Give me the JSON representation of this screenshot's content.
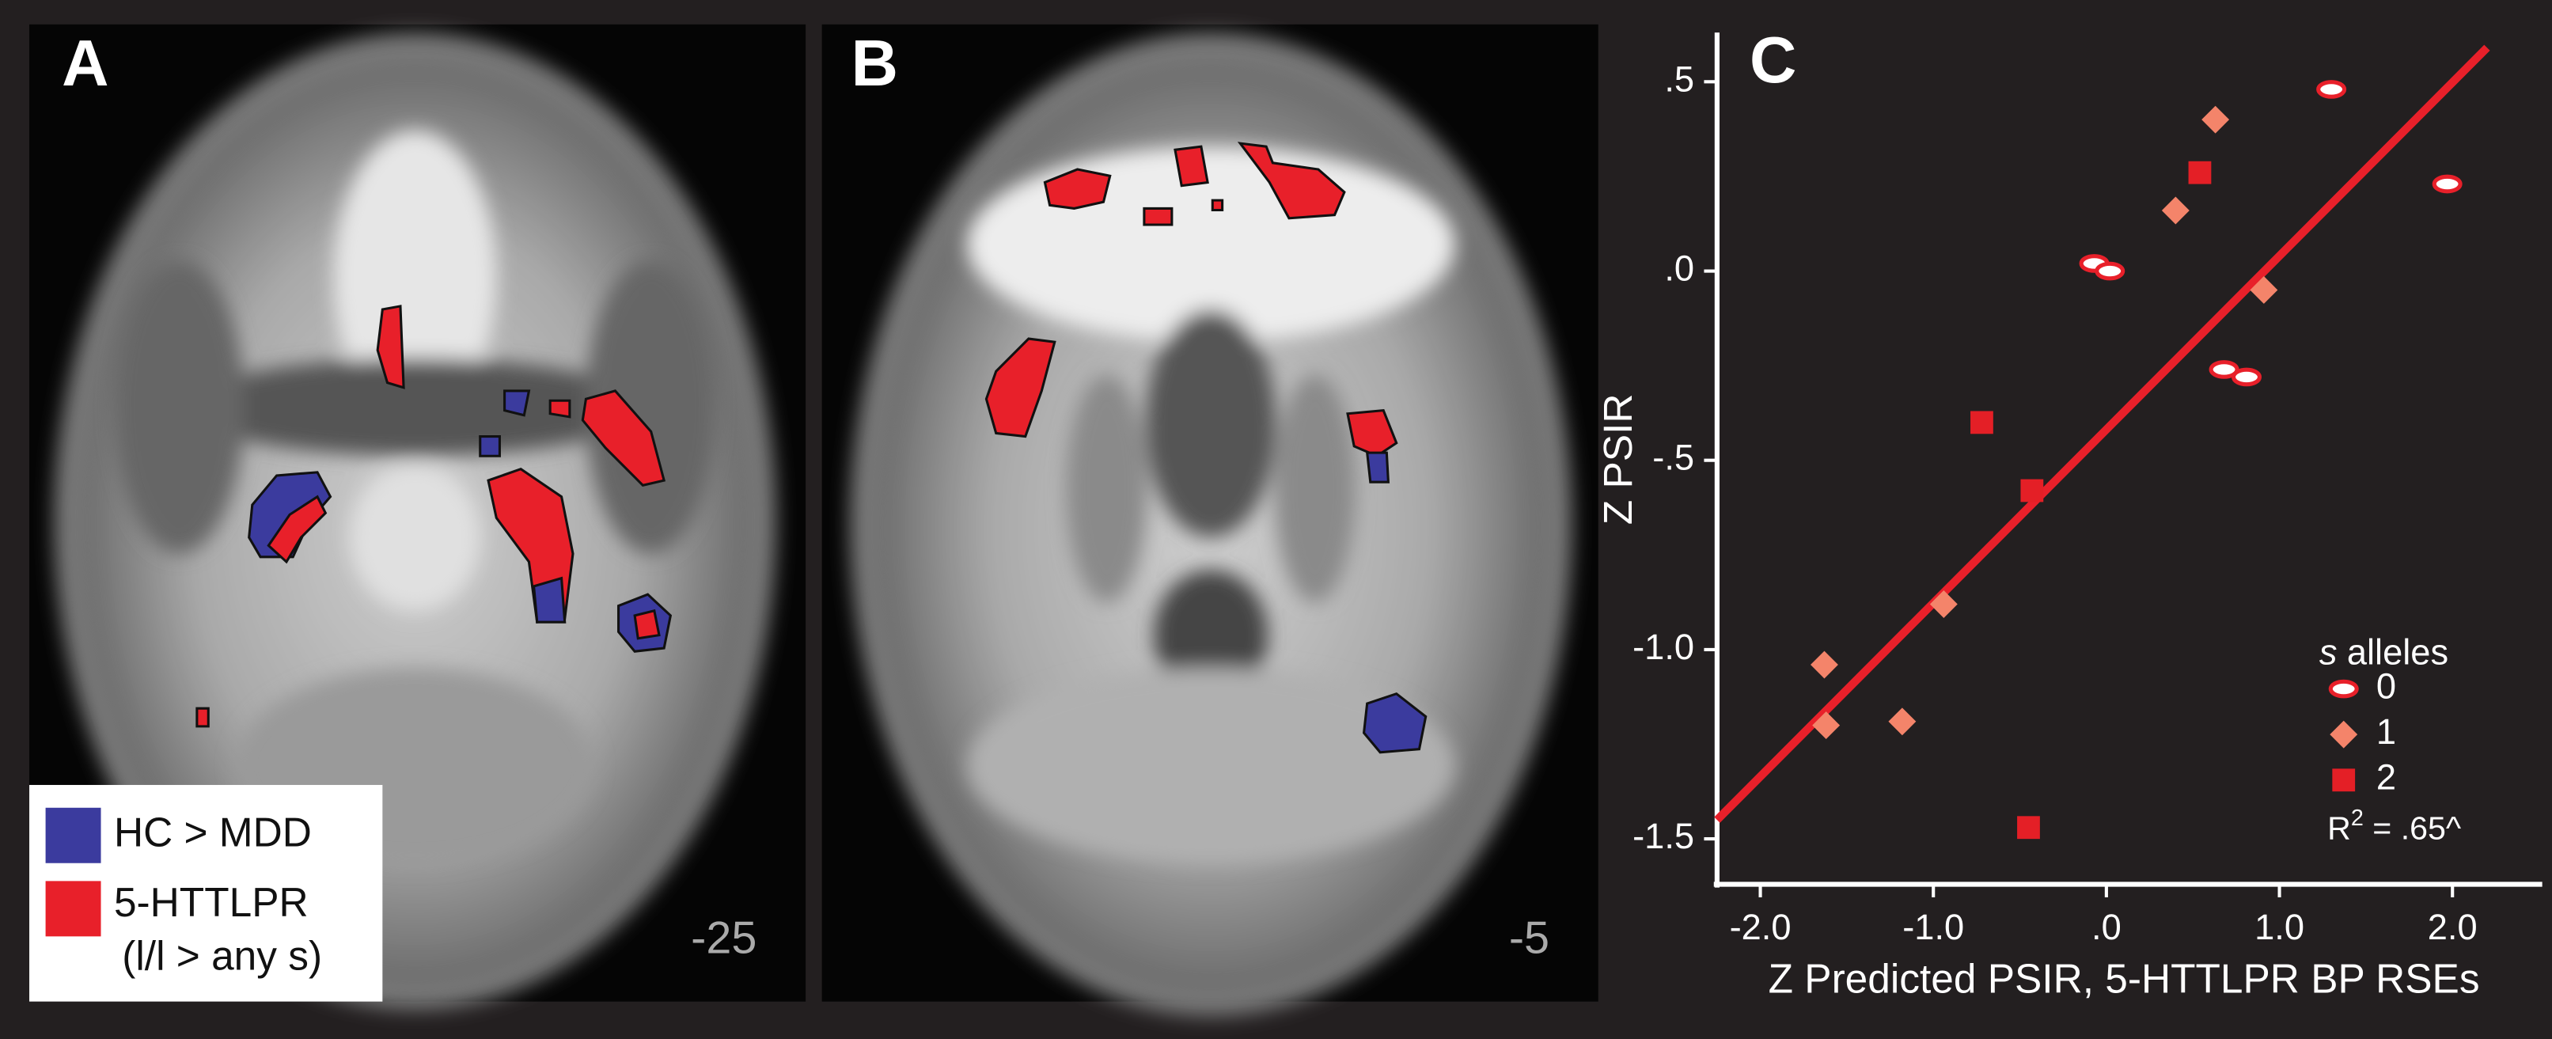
{
  "panels": [
    {
      "label": "A",
      "slice": "-25"
    },
    {
      "label": "B",
      "slice": "-5"
    }
  ],
  "legend": {
    "items": [
      {
        "label": "HC > MDD",
        "color": "#3b3b9e"
      },
      {
        "label": "5-HTTLPR",
        "note": "(l/l > any s)",
        "color": "#e8202a"
      }
    ]
  },
  "chart_data": {
    "type": "scatter",
    "panel_label": "C",
    "x_label": "Z Predicted PSIR, 5-HTTLPR BP RSEs",
    "y_label": "Z PSIR",
    "xlim": [
      -2.25,
      2.5
    ],
    "ylim": [
      -1.62,
      0.63
    ],
    "xticks": [
      {
        "value": -2,
        "label": "-2.0"
      },
      {
        "value": -1,
        "label": "-1.0"
      },
      {
        "value": 0,
        "label": ".0"
      },
      {
        "value": 1,
        "label": "1.0"
      },
      {
        "value": 2,
        "label": "2.0"
      }
    ],
    "yticks": [
      {
        "value": 0.5,
        "label": ".5"
      },
      {
        "value": 0,
        "label": ".0"
      },
      {
        "value": -0.5,
        "label": "-.5"
      },
      {
        "value": -1,
        "label": "-1.0"
      },
      {
        "value": -1.5,
        "label": "-1.5"
      }
    ],
    "legend_title": {
      "italic": "s",
      "rest": "alleles"
    },
    "series": [
      {
        "name": "0",
        "marker": "oval",
        "color": "#e8202a",
        "x": [
          1.3,
          1.97,
          -0.07,
          0.02,
          0.68,
          0.81
        ],
        "y": [
          0.48,
          0.23,
          0.02,
          0.0,
          -0.26,
          -0.28
        ]
      },
      {
        "name": "1",
        "marker": "diamond",
        "color": "#f4846a",
        "x": [
          0.63,
          0.4,
          0.91,
          -0.94,
          -1.63,
          -1.62,
          -1.18
        ],
        "y": [
          0.4,
          0.16,
          -0.05,
          -0.88,
          -1.04,
          -1.2,
          -1.19
        ]
      },
      {
        "name": "2",
        "marker": "square",
        "color": "#e41f26",
        "x": [
          0.54,
          -0.72,
          -0.43,
          -0.45
        ],
        "y": [
          0.26,
          -0.4,
          -0.58,
          -1.47
        ]
      }
    ],
    "fit_line": {
      "color": "#e8202a",
      "x": [
        -2.25,
        2.2
      ],
      "y": [
        -1.45,
        0.59
      ]
    },
    "annotation": {
      "base": "R",
      "sup": "2",
      "rest": " = .65^"
    }
  }
}
